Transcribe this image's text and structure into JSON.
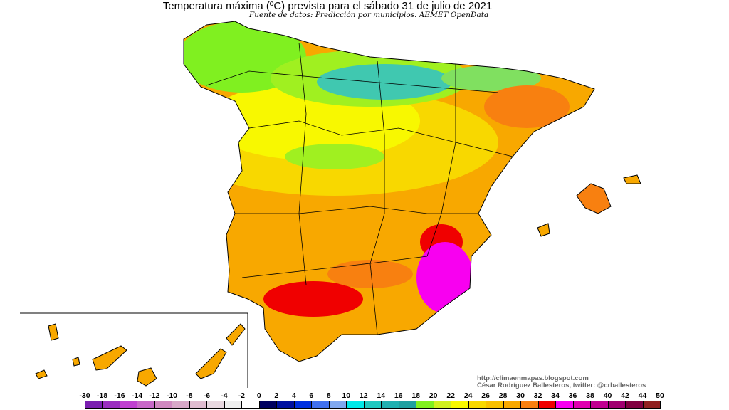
{
  "header": {
    "title": "Temperatura máxima (ºC) prevista para el sábado 31 de julio de 2021",
    "subtitle": "Fuente de datos: Predicción por municipios. AEMET OpenData"
  },
  "credits": {
    "url": "http://climaenmapas.blogspot.com",
    "author": "César Rodríguez Ballesteros, twitter: @crballesteros"
  },
  "legend": {
    "labels": [
      "-30",
      "-18",
      "-16",
      "-14",
      "-12",
      "-10",
      "-8",
      "-6",
      "-4",
      "-2",
      "0",
      "2",
      "4",
      "6",
      "8",
      "10",
      "12",
      "14",
      "16",
      "18",
      "20",
      "22",
      "24",
      "26",
      "28",
      "30",
      "32",
      "34",
      "36",
      "38",
      "40",
      "42",
      "44",
      "50"
    ],
    "colors": [
      "#7a1fb0",
      "#9a2ec0",
      "#c040d0",
      "#c868c8",
      "#d088c0",
      "#d8a8c8",
      "#e0bcd0",
      "#e8d8e0",
      "#eeeeee",
      "#ffffff",
      "#000060",
      "#0010a0",
      "#0030e0",
      "#4070f0",
      "#80a8f0",
      "#00e8e8",
      "#20c8c0",
      "#20b0b0",
      "#20a0a0",
      "#80f020",
      "#d0f020",
      "#f8f800",
      "#f8d800",
      "#f8c000",
      "#f8a800",
      "#f88010",
      "#f00000",
      "#f800f0",
      "#e000b0",
      "#c00090",
      "#a00070",
      "#800040",
      "#902020"
    ]
  },
  "map": {
    "region": "Spain peninsula, Balearic and Canary Islands",
    "colors": {
      "north": "#40d8a0",
      "north_green": "#80f020",
      "yellow": "#f8f800",
      "orange": "#f8a800",
      "hot": "#f00000",
      "hottest": "#f800f0"
    }
  }
}
